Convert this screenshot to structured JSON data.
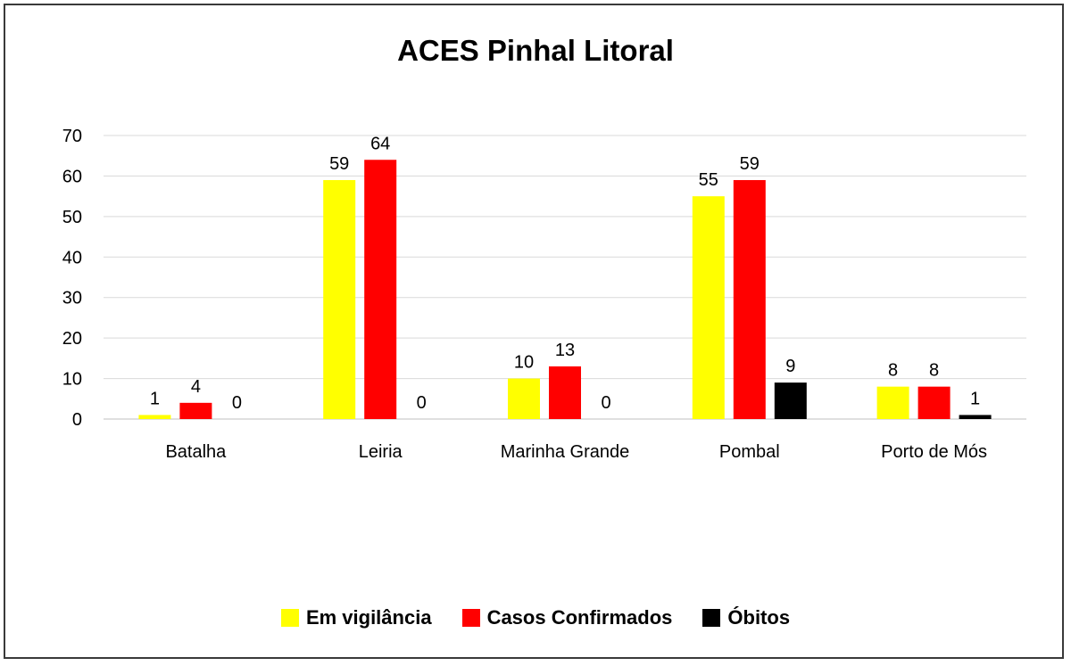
{
  "chart_data": {
    "type": "bar",
    "title": "ACES Pinhal Litoral",
    "xlabel": "",
    "ylabel": "",
    "ylim": [
      0,
      70
    ],
    "yticks": [
      0,
      10,
      20,
      30,
      40,
      50,
      60,
      70
    ],
    "grid": true,
    "legend_position": "bottom",
    "categories": [
      "Batalha",
      "Leiria",
      "Marinha Grande",
      "Pombal",
      "Porto de Mós"
    ],
    "series": [
      {
        "name": "Em vigilância",
        "color": "#ffff00",
        "values": [
          1,
          59,
          10,
          55,
          8
        ]
      },
      {
        "name": "Casos Confirmados",
        "color": "#ff0000",
        "values": [
          4,
          64,
          13,
          59,
          8
        ]
      },
      {
        "name": "Óbitos",
        "color": "#000000",
        "values": [
          0,
          0,
          0,
          9,
          1
        ]
      }
    ]
  }
}
